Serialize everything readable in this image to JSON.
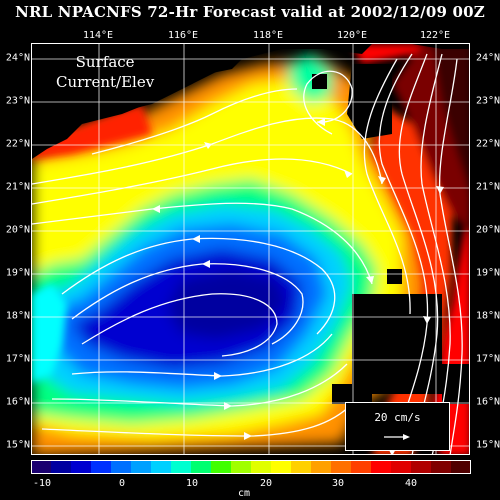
{
  "title": "NRL NPACNFS 72-Hr Forecast valid at 2002/12/09 00Z",
  "map_label": {
    "line1": "Surface",
    "line2": "Current/Elev"
  },
  "lon_ticks": [
    "114°E",
    "116°E",
    "118°E",
    "120°E",
    "122°E"
  ],
  "lat_ticks": [
    "24°N",
    "23°N",
    "22°N",
    "21°N",
    "20°N",
    "19°N",
    "18°N",
    "17°N",
    "16°N",
    "15°N"
  ],
  "scale": {
    "label": "20 cm/s"
  },
  "colorbar": {
    "tick_labels": [
      "-10",
      "0",
      "10",
      "20",
      "30",
      "40"
    ],
    "unit": "cm",
    "colors": [
      "#1a0070",
      "#0000a0",
      "#0000d0",
      "#0030ff",
      "#0070ff",
      "#00a0ff",
      "#00d0ff",
      "#00ffd0",
      "#00ff70",
      "#40ff00",
      "#a0ff00",
      "#e0ff00",
      "#ffff00",
      "#ffd000",
      "#ffa000",
      "#ff7000",
      "#ff4000",
      "#ff0000",
      "#e00000",
      "#b00000",
      "#800000",
      "#500000"
    ]
  },
  "colors": {
    "land": "#000000",
    "arrows": "#ffffff",
    "background": "#000000"
  }
}
